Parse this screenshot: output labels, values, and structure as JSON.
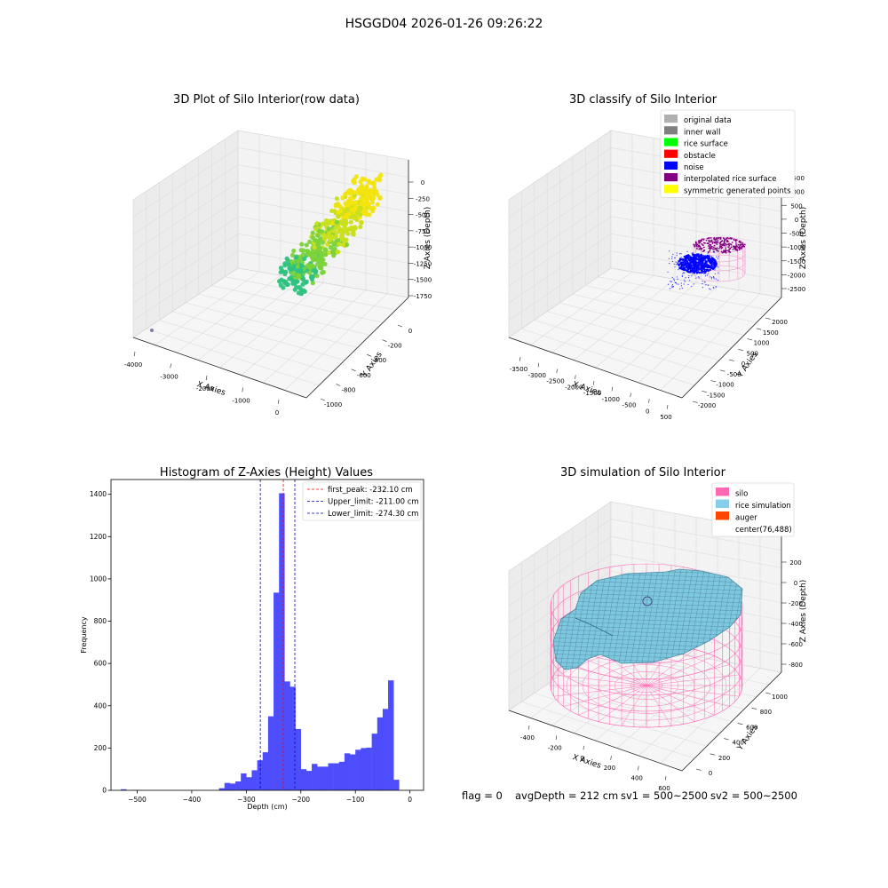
{
  "suptitle": "HSGGD04 2026-01-26 09:26:22",
  "footer": {
    "flag": "flag = 0",
    "avg": "avgDepth = 212 cm",
    "sv1": "sv1 = 500~2500",
    "sv2": "sv2 = 500~2500"
  },
  "chart_data": [
    {
      "type": "scatter",
      "title": "3D Plot of Silo Interior(row data)",
      "xlabel": "X Axies",
      "ylabel": "Y Axies",
      "zlabel": "Z Axies (Depth)",
      "x_ticks": [
        "-4000",
        "-3000",
        "-2000",
        "-1000",
        "0"
      ],
      "y_ticks": [
        "0",
        "-200",
        "-400",
        "-600",
        "-800",
        "-1000"
      ],
      "z_ticks": [
        "0",
        "-250",
        "-500",
        "-750",
        "-1000",
        "-1250",
        "-1500",
        "-1750"
      ],
      "colormap": [
        "#2ec27e",
        "#7bd23a",
        "#c9df1a",
        "#f2e40c"
      ]
    },
    {
      "type": "scatter",
      "title": "3D classify of Silo Interior",
      "xlabel": "X Axies",
      "ylabel": "Y Axies",
      "zlabel": "Z Axies (Depth)",
      "x_ticks": [
        "-3500",
        "-3000",
        "-2500",
        "-2000",
        "-1500",
        "-1000",
        "-500",
        "0",
        "500"
      ],
      "y_ticks": [
        "2000",
        "1500",
        "1000",
        "500",
        "0",
        "-500",
        "-1000",
        "-1500",
        "-2000"
      ],
      "z_ticks": [
        "1500",
        "1000",
        "500",
        "0",
        "-500",
        "-1000",
        "-1500",
        "-2000",
        "-2500"
      ],
      "legend": [
        {
          "label": "original data",
          "color": "#b0b0b0"
        },
        {
          "label": "inner wall",
          "color": "#808080"
        },
        {
          "label": "rice surface",
          "color": "#00ff00"
        },
        {
          "label": "obstacle",
          "color": "#ff0000"
        },
        {
          "label": "noise",
          "color": "#0000ff"
        },
        {
          "label": "interpolated rice surface",
          "color": "#800080"
        },
        {
          "label": "symmetric generated points",
          "color": "#ffff00"
        }
      ]
    },
    {
      "type": "bar",
      "title": "Histogram of Z-Axies (Height) Values",
      "xlabel": "Depth (cm)",
      "ylabel": "Frequency",
      "xlim": [
        -548,
        25
      ],
      "ylim": [
        0,
        1470
      ],
      "x_ticks": [
        -500,
        -400,
        -300,
        -200,
        -100,
        0
      ],
      "y_ticks": [
        0,
        200,
        400,
        600,
        800,
        1000,
        1200,
        1400
      ],
      "bar_color": "#4d4dfb",
      "bin_width": 10.4,
      "bins": [
        [
          -530,
          5
        ],
        [
          -510,
          2
        ],
        [
          -350,
          10
        ],
        [
          -340,
          35
        ],
        [
          -330,
          32
        ],
        [
          -320,
          42
        ],
        [
          -310,
          80
        ],
        [
          -300,
          62
        ],
        [
          -290,
          95
        ],
        [
          -280,
          142
        ],
        [
          -270,
          180
        ],
        [
          -260,
          350
        ],
        [
          -250,
          935
        ],
        [
          -240,
          1405
        ],
        [
          -230,
          515
        ],
        [
          -220,
          490
        ],
        [
          -210,
          290
        ],
        [
          -200,
          100
        ],
        [
          -190,
          92
        ],
        [
          -180,
          125
        ],
        [
          -170,
          112
        ],
        [
          -160,
          112
        ],
        [
          -150,
          128
        ],
        [
          -140,
          128
        ],
        [
          -130,
          135
        ],
        [
          -120,
          175
        ],
        [
          -110,
          170
        ],
        [
          -100,
          192
        ],
        [
          -90,
          200
        ],
        [
          -80,
          202
        ],
        [
          -70,
          268
        ],
        [
          -60,
          345
        ],
        [
          -50,
          385
        ],
        [
          -40,
          520
        ],
        [
          -30,
          50
        ]
      ],
      "lines": [
        {
          "label": "first_peak: -232.10 cm",
          "x": -232.1,
          "color": "#ff0000"
        },
        {
          "label": "Upper_limit: -211.00 cm",
          "x": -211.0,
          "color": "#0000cc"
        },
        {
          "label": "Lower_limit: -274.30 cm",
          "x": -274.3,
          "color": "#0000cc"
        }
      ]
    },
    {
      "type": "surface",
      "title": "3D simulation of Silo Interior",
      "xlabel": "X Axies",
      "ylabel": "Y Axies",
      "zlabel": "Z Axies (Depth)",
      "x_ticks": [
        "-400",
        "-200",
        "0",
        "200",
        "400",
        "600"
      ],
      "y_ticks": [
        "1000",
        "800",
        "600",
        "400",
        "200",
        "0"
      ],
      "z_ticks": [
        "200",
        "0",
        "-200",
        "-400",
        "-600",
        "-800"
      ],
      "legend": [
        {
          "label": "silo",
          "color": "#ff69b4"
        },
        {
          "label": "rice simulation",
          "color": "#87ceeb"
        },
        {
          "label": "auger",
          "color": "#ff4500"
        },
        {
          "label": "center(76,488)",
          "color": ""
        }
      ]
    }
  ]
}
